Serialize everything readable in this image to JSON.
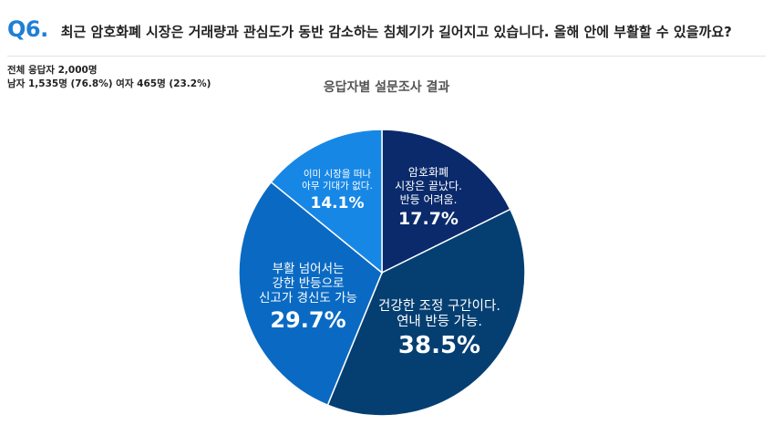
{
  "header": {
    "qnum": "Q6.",
    "question": "최근 암호화폐 시장은 거래량과 관심도가 동반 감소하는 침체기가 길어지고 있습니다. 올해 안에 부활할 수 있을까요?"
  },
  "stats": {
    "total": "전체 응답자 2,000명",
    "gender": "남자 1,535명 (76.8%) 여자 465명 (23.2%)"
  },
  "chart_data": {
    "type": "pie",
    "title": "응답자별 설문조사 결과",
    "slices": [
      {
        "lines": [
          "암호화폐",
          "시장은 끝났다.",
          "반등 어려움."
        ],
        "value": 17.7,
        "label": "17.7%",
        "color": "#0a2a6b"
      },
      {
        "lines": [
          "건강한 조정 구간이다.",
          "연내 반등 가능."
        ],
        "value": 38.5,
        "label": "38.5%",
        "color": "#053f72"
      },
      {
        "lines": [
          "부활 넘어서는",
          "강한 반등으로",
          "신고가 경신도 가능"
        ],
        "value": 29.7,
        "label": "29.7%",
        "color": "#0a6ac3"
      },
      {
        "lines": [
          "이미 시장을 떠나",
          "아무 기대가 없다."
        ],
        "value": 14.1,
        "label": "14.1%",
        "color": "#1787e6"
      }
    ]
  }
}
